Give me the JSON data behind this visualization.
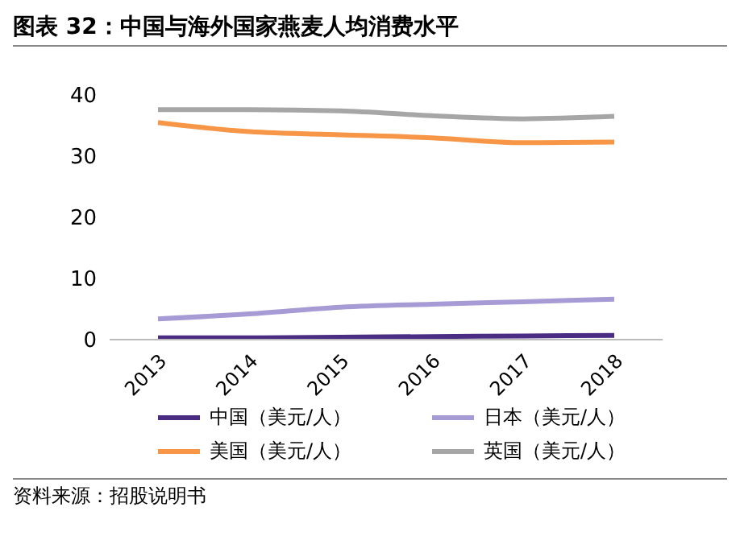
{
  "chart_data": {
    "type": "line",
    "title": "图表 32：中国与海外国家燕麦人均消费水平",
    "categories": [
      "2013",
      "2014",
      "2015",
      "2016",
      "2017",
      "2018"
    ],
    "series": [
      {
        "name": "中国（美元/人）",
        "color": "#4b2c83",
        "values": [
          0.3,
          0.3,
          0.4,
          0.5,
          0.6,
          0.7
        ]
      },
      {
        "name": "日本（美元/人）",
        "color": "#a79bd6",
        "values": [
          3.4,
          4.2,
          5.3,
          5.8,
          6.2,
          6.6
        ]
      },
      {
        "name": "美国（美元/人）",
        "color": "#f79646",
        "values": [
          35.5,
          34,
          33.5,
          33,
          32.2,
          32.3
        ]
      },
      {
        "name": "英国（美元/人）",
        "color": "#a6a6a6",
        "values": [
          37.6,
          37.6,
          37.4,
          36.6,
          36.1,
          36.5
        ]
      }
    ],
    "ylim": [
      0,
      40
    ],
    "yticks": [
      0,
      10,
      20,
      30,
      40
    ],
    "grid": false,
    "legend": "bottom",
    "marker": "none",
    "line_style": "solid",
    "annotations": [
      "资料来源：招股说明书"
    ]
  }
}
